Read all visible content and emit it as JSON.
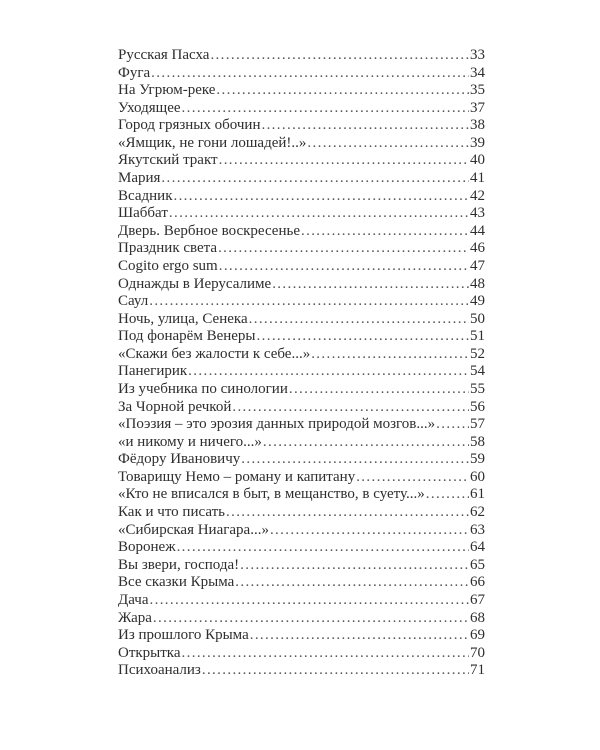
{
  "toc": [
    {
      "title": "Русская Пасха",
      "page": "33"
    },
    {
      "title": "Фуга",
      "page": "34"
    },
    {
      "title": "На Угрюм-реке",
      "page": "35"
    },
    {
      "title": "Уходящее",
      "page": "37"
    },
    {
      "title": "Город грязных обочин",
      "page": "38"
    },
    {
      "title": "«Ямщик, не гони лошадей!..»",
      "page": "39"
    },
    {
      "title": "Якутский тракт",
      "page": "40"
    },
    {
      "title": "Мария",
      "page": "41"
    },
    {
      "title": "Всадник",
      "page": "42"
    },
    {
      "title": "Шаббат",
      "page": "43"
    },
    {
      "title": "Дверь. Вербное воскресенье",
      "page": "44"
    },
    {
      "title": "Праздник света",
      "page": "46"
    },
    {
      "title": "Cogito ergo sum",
      "page": "47"
    },
    {
      "title": "Однажды в Иерусалиме",
      "page": "48"
    },
    {
      "title": "Саул",
      "page": "49"
    },
    {
      "title": "Ночь, улица, Сенека",
      "page": "50"
    },
    {
      "title": "Под фонарём Венеры",
      "page": "51"
    },
    {
      "title": "«Скажи без жалости к себе...»",
      "page": "52"
    },
    {
      "title": "Панегирик",
      "page": "54"
    },
    {
      "title": "Из учебника по синологии",
      "page": "55"
    },
    {
      "title": "За Чорной речкой",
      "page": "56"
    },
    {
      "title": "«Поэзия – это эрозия данных природой мозгов...»",
      "page": "57"
    },
    {
      "title": "«и никому и ничего...»",
      "page": "58"
    },
    {
      "title": "Фёдору Ивановичу",
      "page": "59"
    },
    {
      "title": "Товарищу Немо – роману и капитану",
      "page": "60"
    },
    {
      "title": "«Кто не вписался в быт, в мещанство, в суету...»",
      "page": "61"
    },
    {
      "title": "Как и что писать",
      "page": "62"
    },
    {
      "title": "«Сибирская Ниагара...»",
      "page": "63"
    },
    {
      "title": "Воронеж",
      "page": "64"
    },
    {
      "title": "Вы звери, господа!",
      "page": "65"
    },
    {
      "title": "Все сказки Крыма",
      "page": "66"
    },
    {
      "title": "Дача",
      "page": "67"
    },
    {
      "title": "Жара",
      "page": "68"
    },
    {
      "title": "Из прошлого Крыма",
      "page": "69"
    },
    {
      "title": "Открытка",
      "page": "70"
    },
    {
      "title": "Психоанализ",
      "page": "71"
    }
  ]
}
